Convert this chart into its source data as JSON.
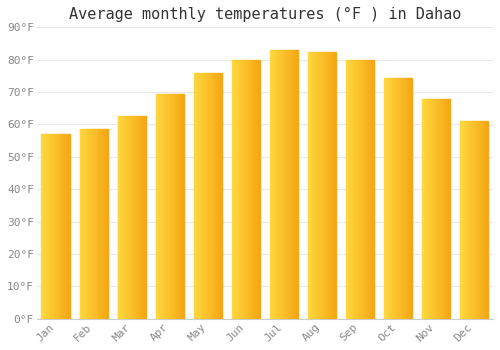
{
  "title": "Average monthly temperatures (°F ) in Dahao",
  "months": [
    "Jan",
    "Feb",
    "Mar",
    "Apr",
    "May",
    "Jun",
    "Jul",
    "Aug",
    "Sep",
    "Oct",
    "Nov",
    "Dec"
  ],
  "values": [
    57,
    58.5,
    62.5,
    69.5,
    76,
    80,
    83,
    82.5,
    80,
    74.5,
    68,
    61
  ],
  "bar_color_left": "#FFCC44",
  "bar_color_right": "#F5A800",
  "ylim": [
    0,
    90
  ],
  "yticks": [
    0,
    10,
    20,
    30,
    40,
    50,
    60,
    70,
    80,
    90
  ],
  "background_color": "#FFFFFF",
  "grid_color": "#E8E8E8",
  "title_fontsize": 11,
  "tick_fontsize": 8,
  "font_family": "monospace"
}
